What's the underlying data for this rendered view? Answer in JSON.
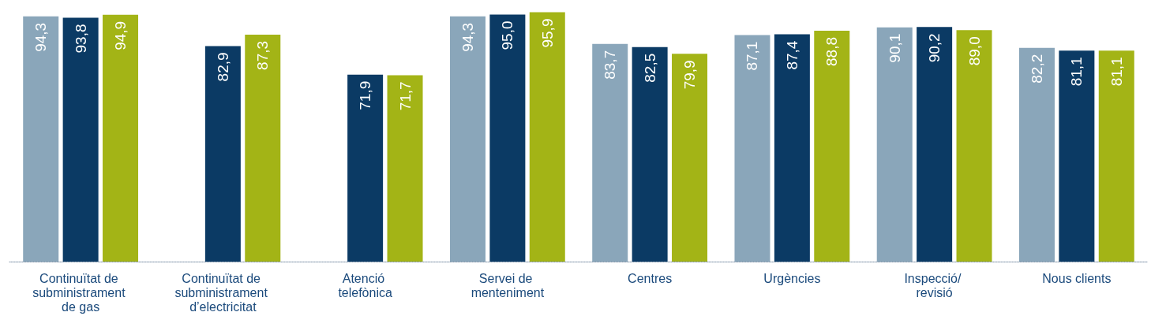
{
  "chart_data": {
    "type": "bar",
    "categories": [
      "Continuïtat de subministrament de gas",
      "Continuïtat de subministrament d’electricitat",
      "Atenció telefònica",
      "Servei de menteniment",
      "Centres",
      "Urgències",
      "Inspecció/ revisió",
      "Nous clients"
    ],
    "series": [
      {
        "color": "#8aa6ba",
        "values": [
          94.3,
          null,
          null,
          94.3,
          83.7,
          87.1,
          90.1,
          82.2
        ],
        "value_labels": [
          "94,3",
          null,
          null,
          "94,3",
          "83,7",
          "87,1",
          "90,1",
          "82,2"
        ]
      },
      {
        "color": "#0b3a64",
        "values": [
          93.8,
          82.9,
          71.9,
          95.0,
          82.5,
          87.4,
          90.2,
          81.1
        ],
        "value_labels": [
          "93,8",
          "82,9",
          "71,9",
          "95,0",
          "82,5",
          "87,4",
          "90,2",
          "81,1"
        ]
      },
      {
        "color": "#a3b416",
        "values": [
          94.9,
          87.3,
          71.7,
          95.9,
          79.9,
          88.8,
          89.0,
          81.1
        ],
        "value_labels": [
          "94,9",
          "87,3",
          "71,7",
          "95,9",
          "79,9",
          "88,8",
          "89,0",
          "81,1"
        ]
      }
    ],
    "tick_labels": "x"
  }
}
